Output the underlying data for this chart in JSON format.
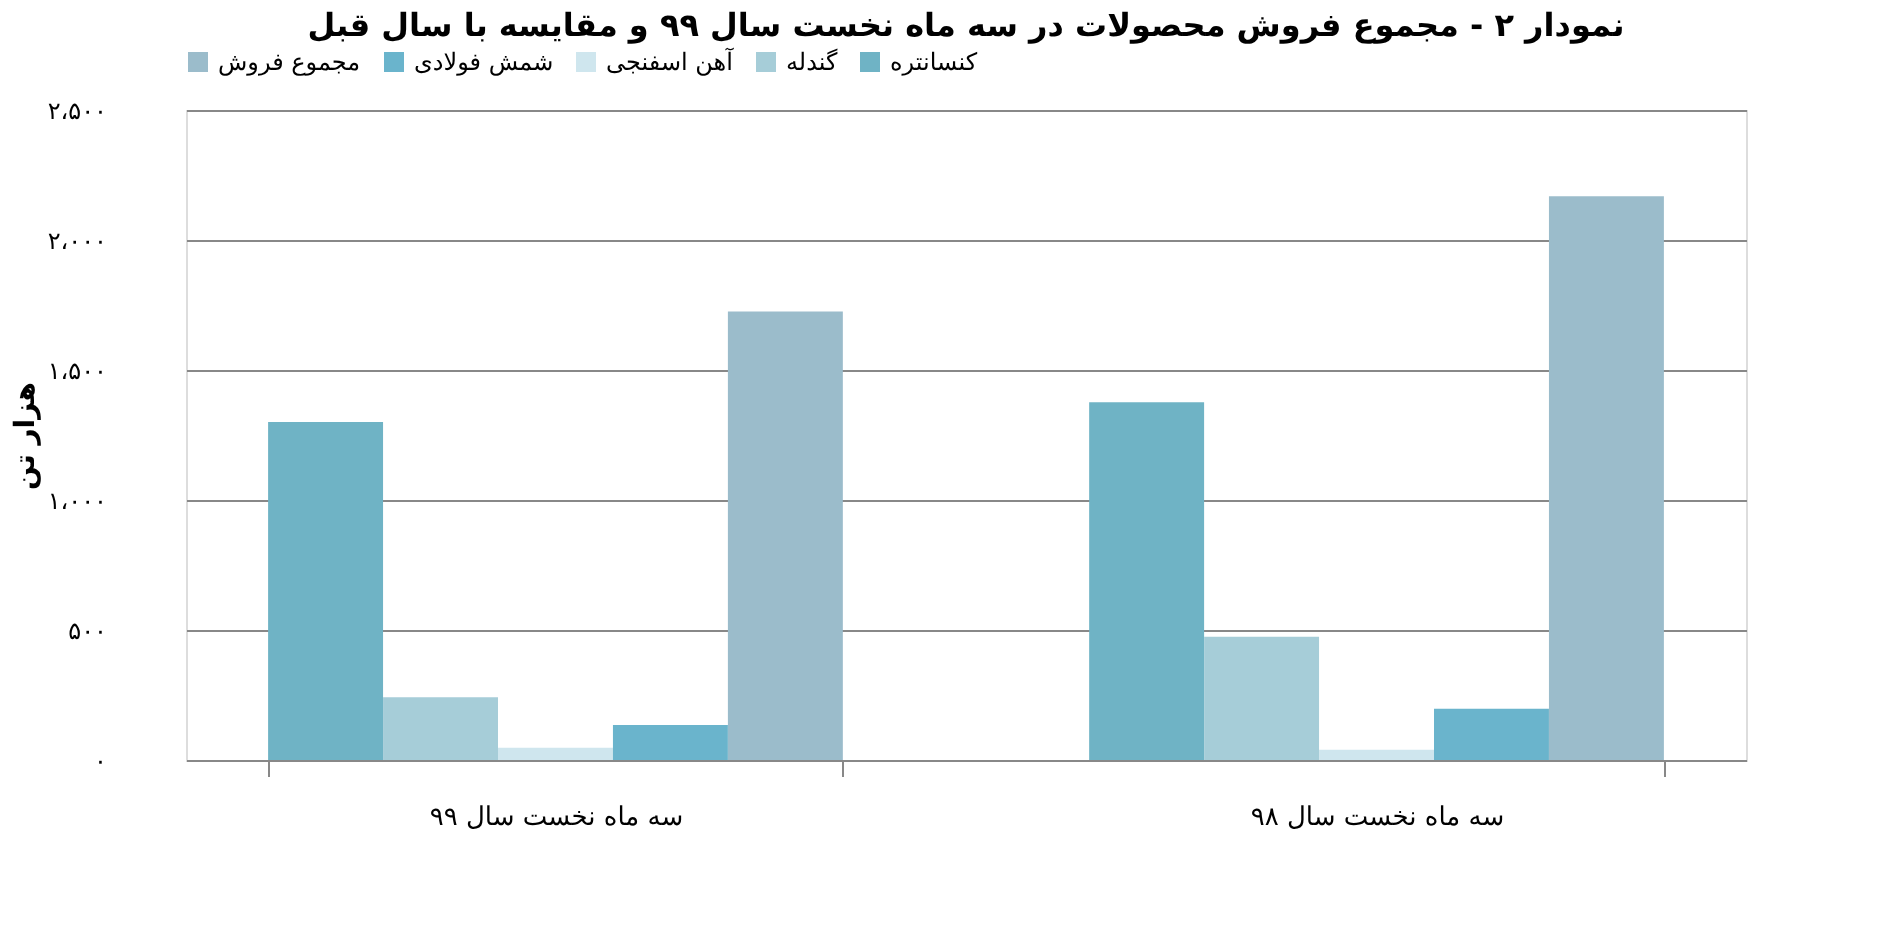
{
  "chart_data": {
    "type": "bar",
    "title": "نمودار ۲ - مجموع فروش محصولات در سه ماه نخست سال ۹۹ و مقایسه با سال قبل",
    "ylabel": "هزار تن",
    "categories": [
      "سه ماه نخست سال ۹۹",
      "سه ماه نخست سال ۹۸"
    ],
    "series": [
      {
        "name": "کنسانتره",
        "color": "#6fb3c5",
        "values": [
          1300,
          1376
        ]
      },
      {
        "name": "گندله",
        "color": "#a6cdd8",
        "values": [
          241,
          474
        ]
      },
      {
        "name": "آهن اسفنجی",
        "color": "#cfe6ee",
        "values": [
          47,
          39
        ]
      },
      {
        "name": "شمش فولادی",
        "color": "#6ab4cc",
        "values": [
          135,
          197
        ]
      },
      {
        "name": "مجموع فروش",
        "color": "#9bbccb",
        "values": [
          1725,
          2168
        ]
      }
    ],
    "ylim": [
      0,
      2500
    ],
    "yticks": [
      {
        "value": 0,
        "label": "۰"
      },
      {
        "value": 500,
        "label": "۵۰۰"
      },
      {
        "value": 1000,
        "label": "۱،۰۰۰"
      },
      {
        "value": 1500,
        "label": "۱،۵۰۰"
      },
      {
        "value": 2000,
        "label": "۲،۰۰۰"
      },
      {
        "value": 2500,
        "label": "۲،۵۰۰"
      }
    ],
    "grid": "y",
    "legend": "top"
  }
}
